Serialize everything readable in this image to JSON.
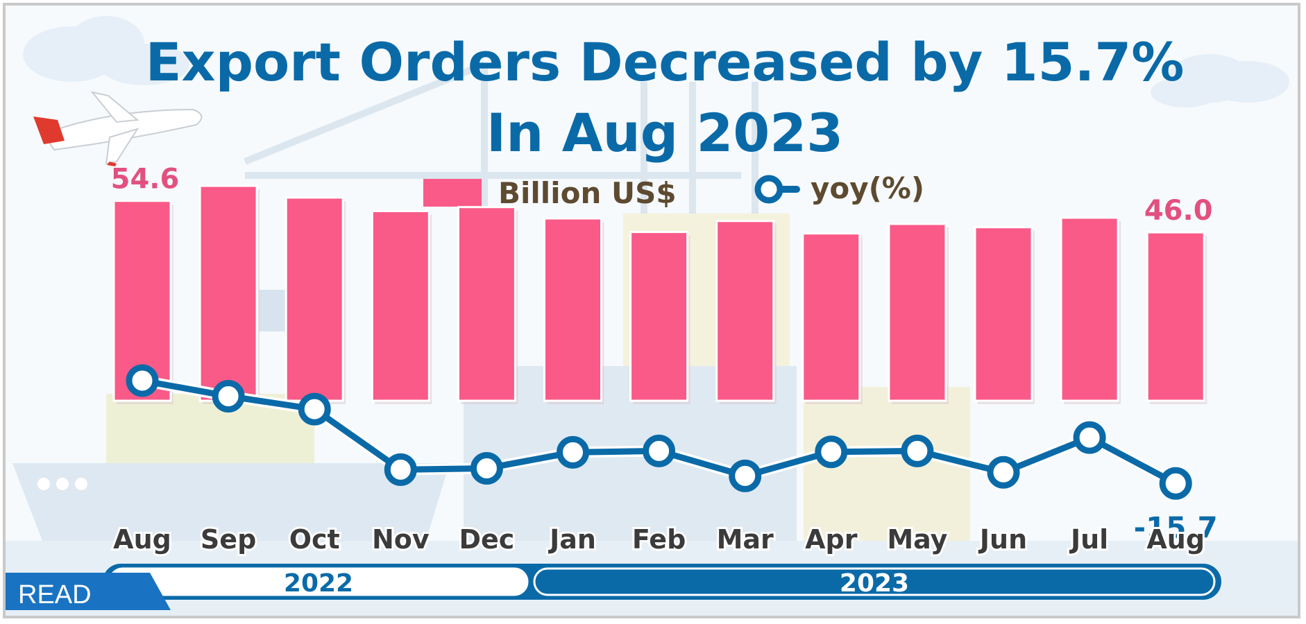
{
  "chart_data": {
    "type": "bar",
    "title": "Export Orders Decreased by 15.7%",
    "subtitle": "In  Aug 2023",
    "categories": [
      "Aug",
      "Sep",
      "Oct",
      "Nov",
      "Dec",
      "Jan",
      "Feb",
      "Mar",
      "Apr",
      "May",
      "Jun",
      "Jul",
      "Aug"
    ],
    "groups": [
      {
        "label": "2022",
        "start": 0,
        "end": 4
      },
      {
        "label": "2023",
        "start": 5,
        "end": 12
      }
    ],
    "series": [
      {
        "name": "Billion US$",
        "type": "bar",
        "color": "#fa5a88",
        "values": [
          54.6,
          58.7,
          55.5,
          51.8,
          52.9,
          49.8,
          46.1,
          49.1,
          45.7,
          48.3,
          47.4,
          50.0,
          46.0
        ]
      },
      {
        "name": "yoy(%)",
        "type": "line",
        "color": "#0a6aa8",
        "values": [
          7.4,
          3.9,
          1.0,
          -12.6,
          -12.3,
          -8.7,
          -8.4,
          -14.0,
          -8.6,
          -8.4,
          -13.2,
          -5.4,
          -15.7
        ]
      }
    ],
    "data_labels": [
      {
        "series": 0,
        "index": 0,
        "text": "54.6"
      },
      {
        "series": 0,
        "index": 12,
        "text": "46.0"
      },
      {
        "series": 1,
        "index": 12,
        "text": "-15.7"
      }
    ],
    "legend": "top-center"
  },
  "badge": {
    "label": "READ"
  },
  "colors": {
    "title": "#0a6aa8",
    "bar": "#fa5a88",
    "line": "#0a6aa8",
    "badge": "#1a73c2"
  },
  "icons": [
    "airplane-icon",
    "cloud-icon",
    "crane-icon",
    "ship-icon"
  ]
}
